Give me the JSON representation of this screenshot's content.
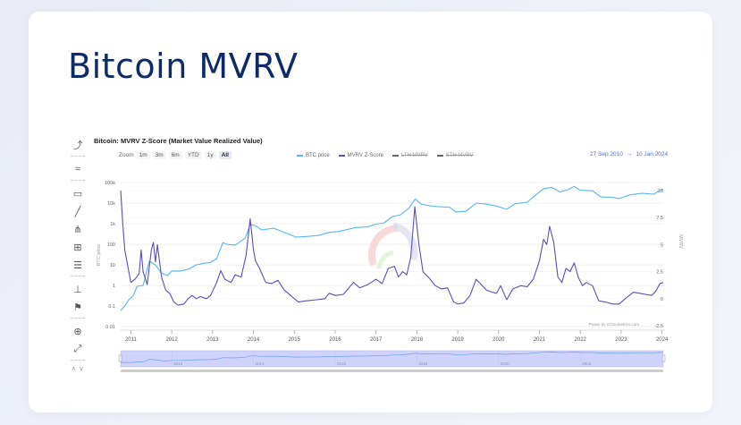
{
  "page": {
    "title": "Bitcoin MVRV"
  },
  "toolbar": {
    "tools": [
      {
        "name": "indicator-icon",
        "glyph": "⤴"
      },
      {
        "name": "compare-icon",
        "glyph": "≈"
      },
      {
        "name": "annotation-icon",
        "glyph": "▭"
      },
      {
        "name": "line-icon",
        "glyph": "╱"
      },
      {
        "name": "pitchfork-icon",
        "glyph": "⋔"
      },
      {
        "name": "grid-icon",
        "glyph": "⊞"
      },
      {
        "name": "fibonacci-icon",
        "glyph": "☰"
      },
      {
        "name": "vertical-line-icon",
        "glyph": "⊥"
      },
      {
        "name": "flag-icon",
        "glyph": "⚑"
      },
      {
        "name": "zoom-icon",
        "glyph": "⊕"
      },
      {
        "name": "fullscreen-icon",
        "glyph": "⤢"
      }
    ],
    "scroll_up": "˄",
    "scroll_down": "˅"
  },
  "chart_header": {
    "title": "Bitcoin: MVRV Z-Score (Market Value Realized Value)",
    "zoom_label": "Zoom",
    "range_buttons": [
      "1m",
      "3m",
      "6m",
      "YTD",
      "1y",
      "All"
    ],
    "active_range": "All",
    "date_from": "27 Sep 2010",
    "date_arrow": "→",
    "date_to": "10 Jan 2024",
    "credits": "Power by GGeometrics.com"
  },
  "colors": {
    "btc_price": "#5ab4ee",
    "mvrv_z": "#5a4fb8",
    "lth": "#555555",
    "sth": "#555555",
    "title": "#0f2a6b",
    "navigator_fill": "#cfd3fb"
  },
  "chart_data": {
    "type": "line",
    "title": "Bitcoin: MVRV Z-Score (Market Value Realized Value)",
    "xlabel": "",
    "ylabel_left": "BTC price",
    "ylabel_right": "MVRV",
    "x_ticks": [
      "2011",
      "2012",
      "2013",
      "2014",
      "2015",
      "2016",
      "2017",
      "2018",
      "2019",
      "2020",
      "2021",
      "2022",
      "2023",
      "2024"
    ],
    "xlim": [
      2010.75,
      2024.03
    ],
    "y_left": {
      "scale": "log",
      "ticks": [
        "0.01",
        "0.1",
        "1",
        "10",
        "100",
        "1k",
        "10k",
        "100k"
      ],
      "ylim": [
        0.01,
        100000
      ]
    },
    "y_right": {
      "scale": "linear",
      "ticks": [
        "-2.5",
        "0",
        "2.5",
        "5",
        "7.5",
        "10"
      ],
      "ylim": [
        -2.5,
        10.5
      ]
    },
    "legend": [
      "BTC price",
      "MVRV Z-Score",
      "LTH MVRV",
      "STH MVRV"
    ],
    "legend_placement": "top-center",
    "navigator_ticks": [
      "2012",
      "2014",
      "2016",
      "2018",
      "2020",
      "2022"
    ],
    "grid": true,
    "series": [
      {
        "name": "BTC price",
        "axis": "left",
        "points": [
          [
            2010.75,
            0.06
          ],
          [
            2010.85,
            0.1
          ],
          [
            2010.95,
            0.2
          ],
          [
            2011.05,
            0.3
          ],
          [
            2011.15,
            0.9
          ],
          [
            2011.3,
            1
          ],
          [
            2011.45,
            15
          ],
          [
            2011.6,
            10
          ],
          [
            2011.75,
            4
          ],
          [
            2011.9,
            3
          ],
          [
            2012.0,
            5
          ],
          [
            2012.2,
            5
          ],
          [
            2012.4,
            6
          ],
          [
            2012.6,
            10
          ],
          [
            2012.8,
            12
          ],
          [
            2012.95,
            13
          ],
          [
            2013.1,
            20
          ],
          [
            2013.25,
            120
          ],
          [
            2013.35,
            100
          ],
          [
            2013.55,
            90
          ],
          [
            2013.8,
            200
          ],
          [
            2013.92,
            900
          ],
          [
            2014.05,
            800
          ],
          [
            2014.2,
            500
          ],
          [
            2014.5,
            600
          ],
          [
            2014.8,
            350
          ],
          [
            2015.05,
            220
          ],
          [
            2015.3,
            240
          ],
          [
            2015.6,
            270
          ],
          [
            2015.85,
            380
          ],
          [
            2016.1,
            420
          ],
          [
            2016.5,
            650
          ],
          [
            2016.8,
            700
          ],
          [
            2017.0,
            950
          ],
          [
            2017.2,
            1100
          ],
          [
            2017.4,
            2200
          ],
          [
            2017.6,
            2700
          ],
          [
            2017.8,
            5500
          ],
          [
            2017.96,
            16000
          ],
          [
            2018.1,
            9000
          ],
          [
            2018.3,
            7500
          ],
          [
            2018.5,
            6800
          ],
          [
            2018.8,
            6400
          ],
          [
            2018.95,
            3700
          ],
          [
            2019.2,
            4000
          ],
          [
            2019.45,
            10000
          ],
          [
            2019.7,
            9000
          ],
          [
            2019.95,
            7200
          ],
          [
            2020.2,
            5000
          ],
          [
            2020.4,
            9200
          ],
          [
            2020.7,
            11000
          ],
          [
            2020.95,
            29000
          ],
          [
            2021.1,
            50000
          ],
          [
            2021.3,
            58000
          ],
          [
            2021.5,
            35000
          ],
          [
            2021.7,
            45000
          ],
          [
            2021.85,
            65000
          ],
          [
            2022.0,
            42000
          ],
          [
            2022.3,
            40000
          ],
          [
            2022.5,
            20000
          ],
          [
            2022.8,
            19000
          ],
          [
            2022.95,
            16500
          ],
          [
            2023.2,
            25000
          ],
          [
            2023.5,
            30000
          ],
          [
            2023.8,
            27000
          ],
          [
            2023.95,
            42000
          ],
          [
            2024.03,
            46000
          ]
        ]
      },
      {
        "name": "MVRV Z-Score",
        "axis": "right",
        "points": [
          [
            2010.75,
            10
          ],
          [
            2010.8,
            7
          ],
          [
            2010.85,
            4.5
          ],
          [
            2010.95,
            2.5
          ],
          [
            2011.0,
            1.5
          ],
          [
            2011.1,
            1.8
          ],
          [
            2011.2,
            2.3
          ],
          [
            2011.25,
            4.5
          ],
          [
            2011.3,
            2.5
          ],
          [
            2011.4,
            1.3
          ],
          [
            2011.5,
            4.5
          ],
          [
            2011.55,
            5.2
          ],
          [
            2011.6,
            3.4
          ],
          [
            2011.65,
            5
          ],
          [
            2011.75,
            2
          ],
          [
            2011.85,
            0.8
          ],
          [
            2011.95,
            0.5
          ],
          [
            2012.05,
            -0.3
          ],
          [
            2012.15,
            -0.6
          ],
          [
            2012.3,
            -0.5
          ],
          [
            2012.4,
            0
          ],
          [
            2012.5,
            0.3
          ],
          [
            2012.6,
            0
          ],
          [
            2012.7,
            0.2
          ],
          [
            2012.85,
            0
          ],
          [
            2012.95,
            0.3
          ],
          [
            2013.1,
            1.5
          ],
          [
            2013.2,
            2.6
          ],
          [
            2013.3,
            1.8
          ],
          [
            2013.45,
            1.5
          ],
          [
            2013.55,
            2.2
          ],
          [
            2013.7,
            2
          ],
          [
            2013.82,
            4
          ],
          [
            2013.92,
            7.4
          ],
          [
            2014.0,
            4.5
          ],
          [
            2014.05,
            3.5
          ],
          [
            2014.15,
            2.8
          ],
          [
            2014.3,
            1.5
          ],
          [
            2014.45,
            1.4
          ],
          [
            2014.6,
            1.7
          ],
          [
            2014.75,
            0.8
          ],
          [
            2014.85,
            0.5
          ],
          [
            2015.0,
            0
          ],
          [
            2015.1,
            -0.3
          ],
          [
            2015.3,
            -0.2
          ],
          [
            2015.55,
            -0.1
          ],
          [
            2015.75,
            0
          ],
          [
            2015.85,
            0.5
          ],
          [
            2016.0,
            0.3
          ],
          [
            2016.2,
            0.4
          ],
          [
            2016.45,
            1.5
          ],
          [
            2016.6,
            1
          ],
          [
            2016.8,
            1.3
          ],
          [
            2017.0,
            1.8
          ],
          [
            2017.15,
            1.4
          ],
          [
            2017.3,
            2.8
          ],
          [
            2017.45,
            3
          ],
          [
            2017.55,
            2
          ],
          [
            2017.65,
            2.5
          ],
          [
            2017.75,
            2.2
          ],
          [
            2017.85,
            3.8
          ],
          [
            2017.95,
            8.5
          ],
          [
            2018.05,
            5
          ],
          [
            2018.15,
            2.5
          ],
          [
            2018.3,
            1.9
          ],
          [
            2018.45,
            1.2
          ],
          [
            2018.6,
            0.9
          ],
          [
            2018.75,
            1
          ],
          [
            2018.9,
            -0.3
          ],
          [
            2019.0,
            -0.5
          ],
          [
            2019.15,
            -0.4
          ],
          [
            2019.3,
            0.3
          ],
          [
            2019.45,
            1.8
          ],
          [
            2019.55,
            1.4
          ],
          [
            2019.7,
            0.8
          ],
          [
            2019.85,
            0.6
          ],
          [
            2019.95,
            0.5
          ],
          [
            2020.05,
            1.2
          ],
          [
            2020.2,
            -0.1
          ],
          [
            2020.35,
            0.9
          ],
          [
            2020.55,
            1.2
          ],
          [
            2020.7,
            1.1
          ],
          [
            2020.85,
            1.8
          ],
          [
            2021.0,
            3.5
          ],
          [
            2021.1,
            5.5
          ],
          [
            2021.18,
            5
          ],
          [
            2021.25,
            6.7
          ],
          [
            2021.35,
            5.2
          ],
          [
            2021.45,
            2
          ],
          [
            2021.55,
            1.5
          ],
          [
            2021.65,
            2.8
          ],
          [
            2021.75,
            2.5
          ],
          [
            2021.85,
            3.3
          ],
          [
            2021.95,
            2
          ],
          [
            2022.05,
            1.2
          ],
          [
            2022.15,
            1.5
          ],
          [
            2022.3,
            1.2
          ],
          [
            2022.45,
            -0.2
          ],
          [
            2022.6,
            -0.3
          ],
          [
            2022.8,
            -0.5
          ],
          [
            2022.95,
            -0.5
          ],
          [
            2023.1,
            0
          ],
          [
            2023.3,
            0.6
          ],
          [
            2023.45,
            0.5
          ],
          [
            2023.6,
            0.4
          ],
          [
            2023.75,
            0.3
          ],
          [
            2023.85,
            0.7
          ],
          [
            2023.95,
            1.4
          ],
          [
            2024.03,
            1.5
          ]
        ]
      }
    ]
  }
}
